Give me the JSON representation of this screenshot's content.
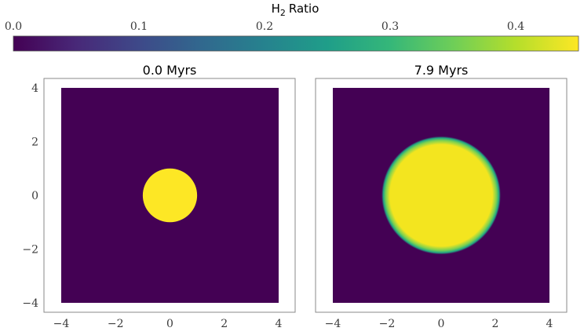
{
  "chart_data": {
    "type": "heatmap",
    "colorbar": {
      "title": "H2 Ratio",
      "title_main": "H",
      "title_sub": "2",
      "title_rest": "Ratio",
      "range": [
        0.0,
        0.45
      ],
      "ticks": [
        "0.0",
        "0.1",
        "0.2",
        "0.3",
        "0.4"
      ],
      "tick_values": [
        0.0,
        0.1,
        0.2,
        0.3,
        0.4
      ],
      "colormap": "viridis",
      "colors": [
        "#440154",
        "#482878",
        "#3e4989",
        "#31688e",
        "#26828e",
        "#1f9e89",
        "#35b779",
        "#6ece58",
        "#b5de2b",
        "#fde725"
      ]
    },
    "panels": [
      {
        "title": "0.0 Myrs",
        "xlim": [
          -4,
          4
        ],
        "ylim": [
          -4,
          4
        ],
        "xticks": [
          "−4",
          "−2",
          "0",
          "2",
          "4"
        ],
        "xtick_values": [
          -4,
          -2,
          0,
          2,
          4
        ],
        "yticks": [
          "4",
          "2",
          "0",
          "−2",
          "−4"
        ],
        "ytick_values": [
          4,
          2,
          0,
          -2,
          -4
        ],
        "background_value": 0.0,
        "blob": {
          "center": [
            0,
            0
          ],
          "radius": 1.0,
          "value": 0.43,
          "edge": "sharp"
        }
      },
      {
        "title": "7.9 Myrs",
        "xlim": [
          -4,
          4
        ],
        "ylim": [
          -4,
          4
        ],
        "xticks": [
          "−4",
          "−2",
          "0",
          "2",
          "4"
        ],
        "xtick_values": [
          -4,
          -2,
          0,
          2,
          4
        ],
        "background_value": 0.0,
        "blob": {
          "center": [
            0,
            0
          ],
          "radius": 2.2,
          "value": 0.43,
          "edge": "soft"
        }
      }
    ]
  }
}
